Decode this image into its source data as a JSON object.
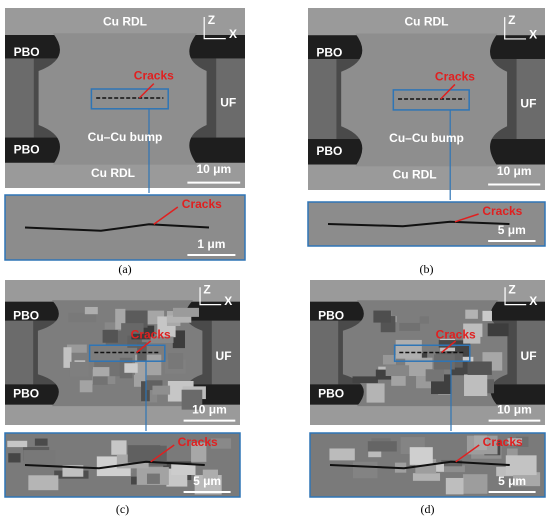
{
  "panels": [
    {
      "label": "(a)",
      "top_rdl": "Cu RDL",
      "pbo_top": "PBO",
      "pbo_bottom": "PBO",
      "uf": "UF",
      "cracks": "Cracks",
      "bump": "Cu–Cu bump",
      "bottom_rdl": "Cu RDL",
      "scale": "10 μm",
      "z": "Z",
      "x": "X",
      "inset_cracks": "Cracks",
      "inset_scale": "1 μm"
    },
    {
      "label": "(b)",
      "top_rdl": "Cu RDL",
      "pbo_top": "PBO",
      "pbo_bottom": "PBO",
      "uf": "UF",
      "cracks": "Cracks",
      "bump": "Cu–Cu bump",
      "bottom_rdl": "Cu RDL",
      "scale": "10 μm",
      "z": "Z",
      "x": "X",
      "inset_cracks": "Cracks",
      "inset_scale": "5 μm"
    },
    {
      "label": "(c)",
      "pbo_top": "PBO",
      "pbo_bottom": "PBO",
      "uf": "UF",
      "cracks": "Cracks",
      "scale": "10 μm",
      "z": "Z",
      "x": "X",
      "inset_cracks": "Cracks",
      "inset_scale": "5 μm"
    },
    {
      "label": "(d)",
      "pbo_top": "PBO",
      "pbo_bottom": "PBO",
      "uf": "UF",
      "cracks": "Cracks",
      "scale": "10 μm",
      "z": "Z",
      "x": "X",
      "inset_cracks": "Cracks",
      "inset_scale": "5 μm"
    }
  ]
}
